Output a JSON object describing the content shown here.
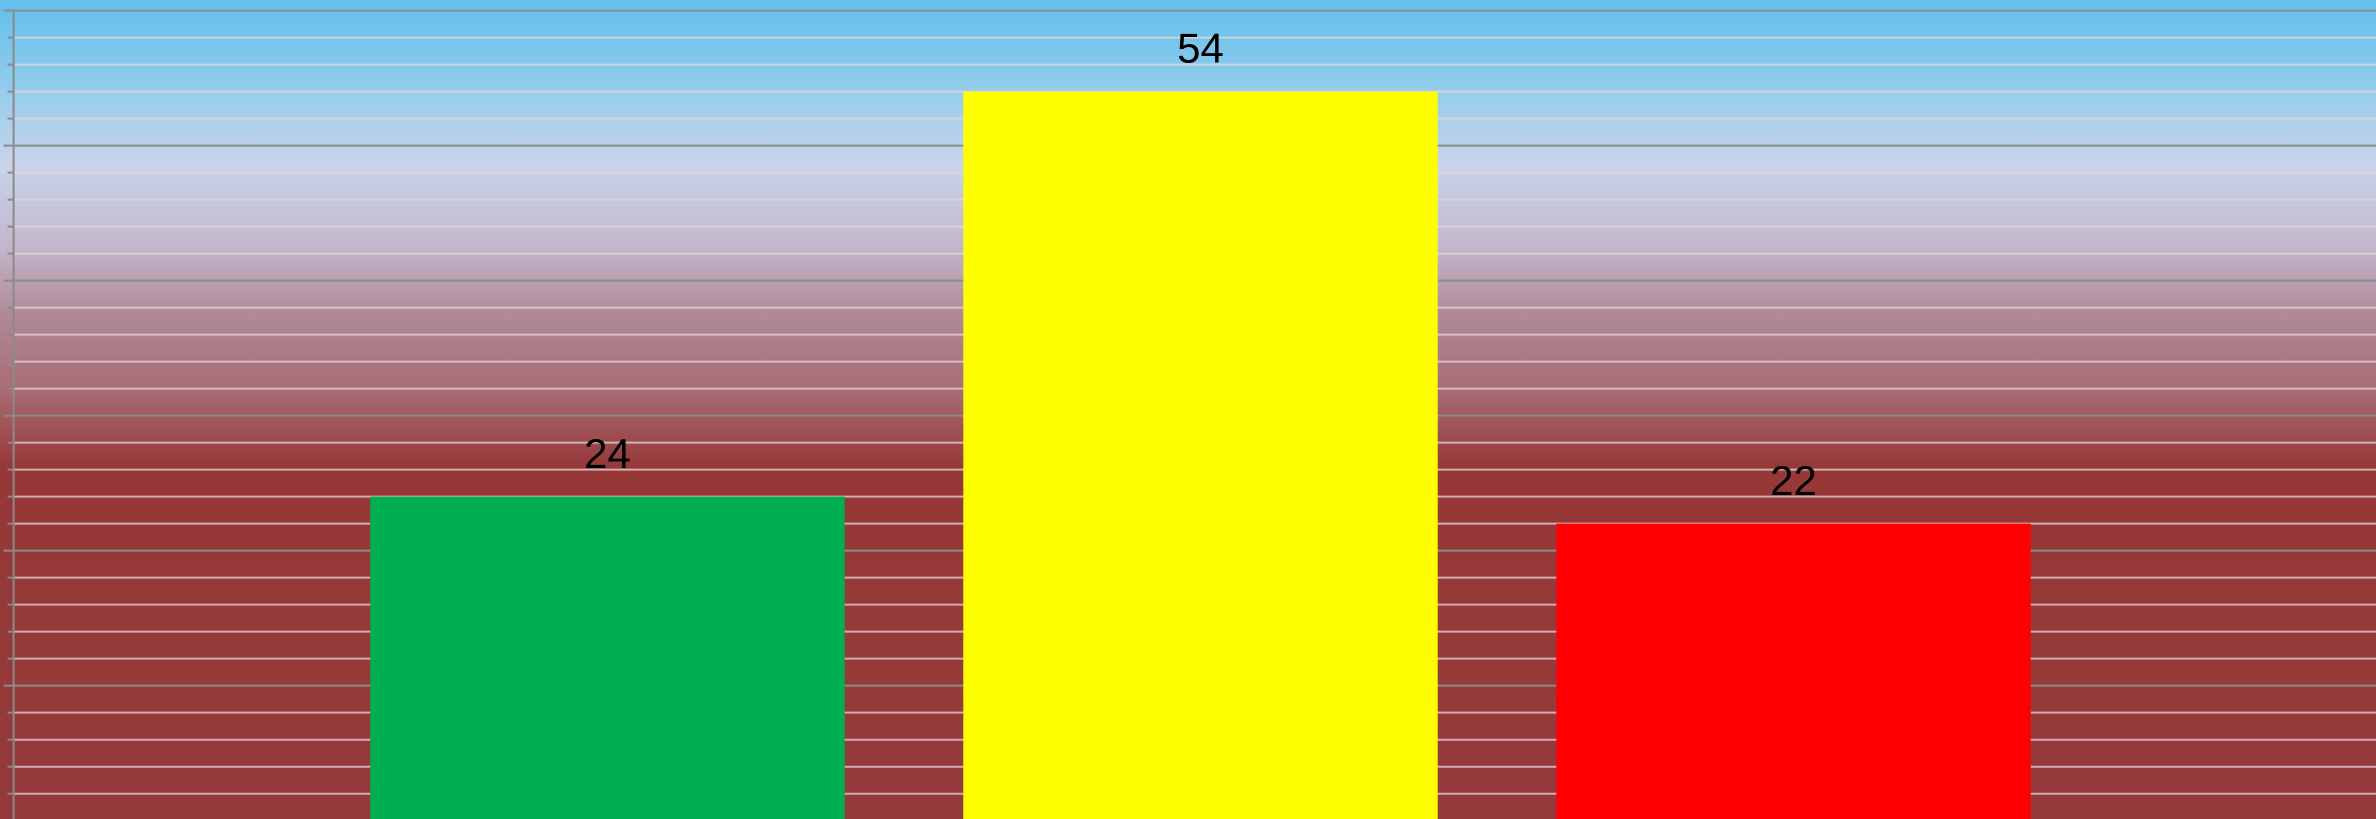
{
  "chart_data": {
    "type": "bar",
    "values": [
      24,
      54,
      22
    ],
    "colors": [
      "#00b050",
      "#ffff00",
      "#ff0000"
    ],
    "ylim": [
      0,
      60
    ],
    "yticks": [
      0,
      10,
      20,
      30,
      40,
      50,
      60
    ],
    "minor_yticks": [
      2,
      4,
      6,
      8,
      12,
      14,
      16,
      18,
      22,
      24,
      26,
      28,
      32,
      34,
      36,
      38,
      42,
      44,
      46,
      48,
      52,
      54,
      56,
      58
    ],
    "grid": true,
    "data_labels": true
  }
}
